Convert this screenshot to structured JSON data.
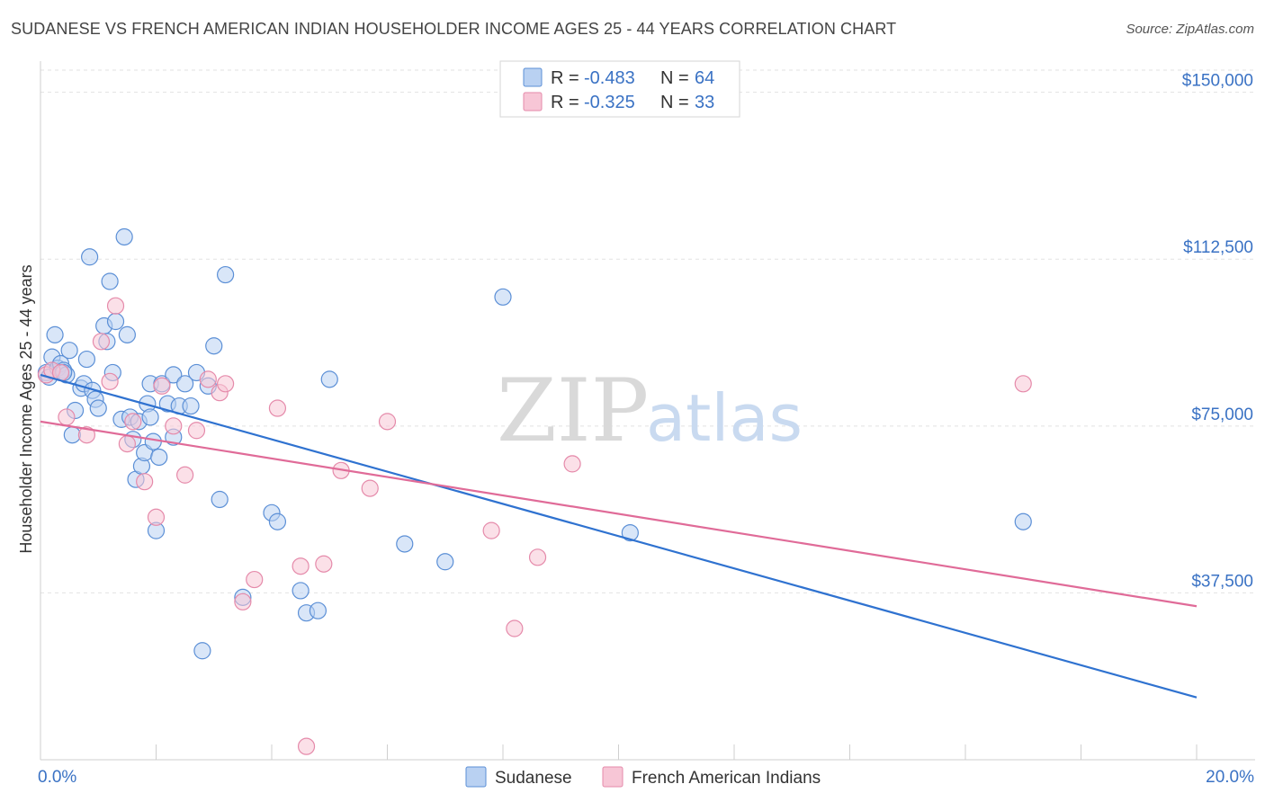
{
  "title": "SUDANESE VS FRENCH AMERICAN INDIAN HOUSEHOLDER INCOME AGES 25 - 44 YEARS CORRELATION CHART",
  "source": "Source: ZipAtlas.com",
  "watermark": {
    "zip": "ZIP",
    "atlas": "atlas"
  },
  "colors": {
    "blue": "#5b8fd6",
    "blue_fill": "#b9d1f2",
    "blue_line": "#2f72d0",
    "pink": "#e58aaa",
    "pink_fill": "#f7c6d6",
    "pink_line": "#e06b98",
    "tick_text": "#3a72c4"
  },
  "legend": {
    "rows": [
      {
        "r_label": "R = ",
        "r_value": "-0.483",
        "n_label": "N = ",
        "n_value": "64"
      },
      {
        "r_label": "R = ",
        "r_value": "-0.325",
        "n_label": "N = ",
        "n_value": "33"
      }
    ]
  },
  "chart_data": {
    "type": "scatter",
    "title": "SUDANESE VS FRENCH AMERICAN INDIAN HOUSEHOLDER INCOME AGES 25 - 44 YEARS CORRELATION CHART",
    "xlabel": "",
    "ylabel": "Householder Income Ages 25 - 44 years",
    "xlim": [
      0,
      20
    ],
    "ylim": [
      0,
      157000
    ],
    "x_tick_labels": [
      "0.0%",
      "20.0%"
    ],
    "y_ticks": [
      {
        "value": 37500,
        "label": "$37,500"
      },
      {
        "value": 75000,
        "label": "$75,000"
      },
      {
        "value": 112500,
        "label": "$112,500"
      },
      {
        "value": 150000,
        "label": "$150,000"
      }
    ],
    "grid": true,
    "legend_position": "top-center",
    "series": [
      {
        "name": "Sudanese",
        "r": -0.483,
        "n": 64,
        "trend": {
          "x": [
            0,
            20
          ],
          "y": [
            86500,
            14000
          ]
        },
        "points": [
          [
            0.1,
            87000
          ],
          [
            0.15,
            86000
          ],
          [
            0.2,
            90500
          ],
          [
            0.25,
            95500
          ],
          [
            0.3,
            88000
          ],
          [
            0.35,
            89000
          ],
          [
            0.4,
            87500
          ],
          [
            0.45,
            86500
          ],
          [
            0.5,
            92000
          ],
          [
            0.55,
            73000
          ],
          [
            0.6,
            78500
          ],
          [
            0.7,
            83500
          ],
          [
            0.75,
            84500
          ],
          [
            0.8,
            90000
          ],
          [
            0.85,
            113000
          ],
          [
            0.9,
            83000
          ],
          [
            0.95,
            81000
          ],
          [
            0.4,
            87000
          ],
          [
            1.0,
            79000
          ],
          [
            1.1,
            97500
          ],
          [
            1.15,
            94000
          ],
          [
            1.2,
            107500
          ],
          [
            1.25,
            87000
          ],
          [
            1.3,
            98500
          ],
          [
            1.4,
            76500
          ],
          [
            1.45,
            117500
          ],
          [
            1.5,
            95500
          ],
          [
            1.55,
            77000
          ],
          [
            1.6,
            72000
          ],
          [
            1.65,
            63000
          ],
          [
            1.7,
            76000
          ],
          [
            1.75,
            66000
          ],
          [
            1.8,
            69000
          ],
          [
            1.85,
            80000
          ],
          [
            1.9,
            84500
          ],
          [
            1.95,
            71500
          ],
          [
            2.0,
            51500
          ],
          [
            2.05,
            68000
          ],
          [
            2.1,
            84500
          ],
          [
            2.2,
            80000
          ],
          [
            2.3,
            86500
          ],
          [
            2.4,
            79500
          ],
          [
            2.5,
            84500
          ],
          [
            2.6,
            79500
          ],
          [
            2.7,
            87000
          ],
          [
            2.8,
            24500
          ],
          [
            2.9,
            84000
          ],
          [
            3.0,
            93000
          ],
          [
            3.1,
            58500
          ],
          [
            3.2,
            109000
          ],
          [
            3.5,
            36500
          ],
          [
            4.0,
            55500
          ],
          [
            4.1,
            53500
          ],
          [
            4.5,
            38000
          ],
          [
            4.6,
            33000
          ],
          [
            4.8,
            33500
          ],
          [
            5.0,
            85500
          ],
          [
            6.3,
            48500
          ],
          [
            7.0,
            44500
          ],
          [
            8.0,
            104000
          ],
          [
            10.2,
            51000
          ],
          [
            17.0,
            53500
          ],
          [
            1.9,
            77000
          ],
          [
            2.3,
            72500
          ]
        ]
      },
      {
        "name": "French American Indians",
        "r": -0.325,
        "n": 33,
        "trend": {
          "x": [
            0,
            20
          ],
          "y": [
            76000,
            34500
          ]
        },
        "points": [
          [
            0.1,
            86500
          ],
          [
            0.2,
            87500
          ],
          [
            0.35,
            87000
          ],
          [
            0.45,
            77000
          ],
          [
            0.8,
            73000
          ],
          [
            1.05,
            94000
          ],
          [
            1.2,
            85000
          ],
          [
            1.3,
            102000
          ],
          [
            1.5,
            71000
          ],
          [
            1.6,
            76000
          ],
          [
            1.8,
            62500
          ],
          [
            2.0,
            54500
          ],
          [
            2.1,
            84000
          ],
          [
            2.3,
            75000
          ],
          [
            2.5,
            64000
          ],
          [
            2.7,
            74000
          ],
          [
            2.9,
            85500
          ],
          [
            3.1,
            82500
          ],
          [
            3.2,
            84500
          ],
          [
            3.5,
            35500
          ],
          [
            3.7,
            40500
          ],
          [
            4.1,
            79000
          ],
          [
            4.5,
            43500
          ],
          [
            4.6,
            3000
          ],
          [
            4.9,
            44000
          ],
          [
            5.2,
            65000
          ],
          [
            5.7,
            61000
          ],
          [
            6.0,
            76000
          ],
          [
            7.8,
            51500
          ],
          [
            8.2,
            29500
          ],
          [
            8.6,
            45500
          ],
          [
            9.2,
            66500
          ],
          [
            17.0,
            84500
          ]
        ]
      }
    ]
  },
  "bottom_legend": [
    "Sudanese",
    "French American Indians"
  ]
}
